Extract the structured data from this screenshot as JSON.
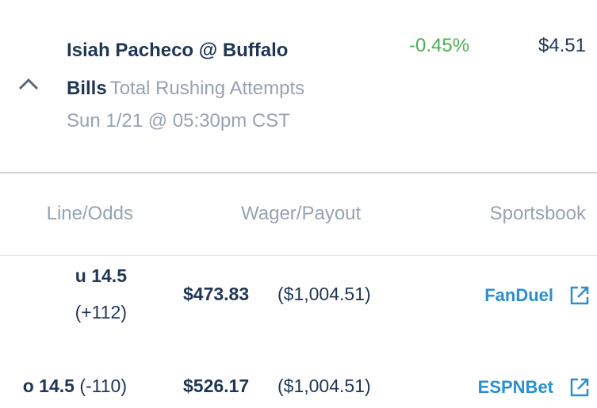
{
  "header": {
    "title": "Isiah Pacheco @ Buffalo Bills",
    "market": "Total Rushing Attempts",
    "date": "Sun 1/21 @ 05:30pm CST",
    "change": "-0.45%",
    "price": "$4.51"
  },
  "table": {
    "columns": [
      "Line/Odds",
      "Wager/Payout",
      "Sportsbook"
    ],
    "rows": [
      {
        "line": "u 14.5",
        "odds": "(+112)",
        "wager": "$473.83",
        "payout": "($1,004.51)",
        "sportsbook": "FanDuel"
      },
      {
        "line": "o 14.5",
        "odds": "(-110)",
        "wager": "$526.17",
        "payout": "($1,004.51)",
        "sportsbook": "ESPNBet"
      }
    ]
  }
}
